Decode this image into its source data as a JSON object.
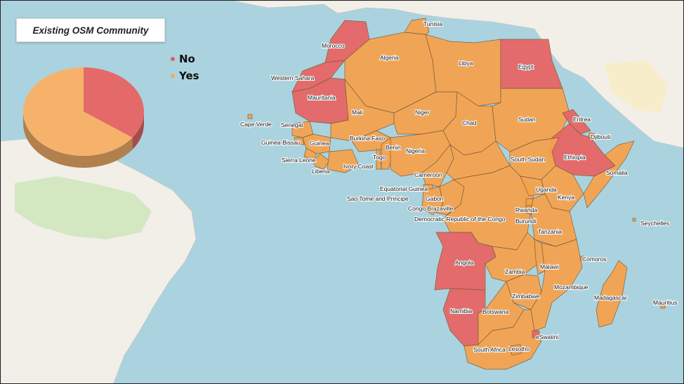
{
  "title": "Existing OSM Community",
  "legend": {
    "items": [
      {
        "label": "No",
        "color": "#e45e5e"
      },
      {
        "label": "Yes",
        "color": "#f5a85a"
      }
    ]
  },
  "colors": {
    "ocean": "#aad3df",
    "land": "#f2efe9",
    "no": "#e86464",
    "yes": "#f6a24c",
    "border": "#7a5a3a"
  },
  "chart_data": {
    "type": "pie",
    "categories": [
      "No",
      "Yes"
    ],
    "values": [
      35,
      65
    ],
    "colors": [
      "#e46a6a",
      "#f6b26b"
    ],
    "style": "3d"
  },
  "countries": [
    {
      "name": "Tunisia",
      "status": "Yes"
    },
    {
      "name": "Morocco",
      "status": "No"
    },
    {
      "name": "Algeria",
      "status": "Yes"
    },
    {
      "name": "Libya",
      "status": "Yes"
    },
    {
      "name": "Egypt",
      "status": "No"
    },
    {
      "name": "Western Sahara",
      "status": "No"
    },
    {
      "name": "Mauritania",
      "status": "No"
    },
    {
      "name": "Mali",
      "status": "Yes"
    },
    {
      "name": "Niger",
      "status": "Yes"
    },
    {
      "name": "Chad",
      "status": "Yes"
    },
    {
      "name": "Sudan",
      "status": "Yes"
    },
    {
      "name": "Eritrea",
      "status": "No"
    },
    {
      "name": "Djibouti",
      "status": "Yes"
    },
    {
      "name": "Cape Verde",
      "status": "Yes"
    },
    {
      "name": "Senegal",
      "status": "Yes"
    },
    {
      "name": "Guinea-Bissau",
      "status": "Yes"
    },
    {
      "name": "Guinea",
      "status": "Yes"
    },
    {
      "name": "Burkina Faso",
      "status": "Yes"
    },
    {
      "name": "Benin",
      "status": "Yes"
    },
    {
      "name": "Nigeria",
      "status": "Yes"
    },
    {
      "name": "Togo",
      "status": "Yes"
    },
    {
      "name": "Sierra Leone",
      "status": "Yes"
    },
    {
      "name": "Liberia",
      "status": "Yes"
    },
    {
      "name": "Ivory Coast",
      "status": "Yes"
    },
    {
      "name": "South Sudan",
      "status": "Yes"
    },
    {
      "name": "Ethiopia",
      "status": "No"
    },
    {
      "name": "Somalia",
      "status": "Yes"
    },
    {
      "name": "Cameroon",
      "status": "Yes"
    },
    {
      "name": "Equatorial Guinea",
      "status": "Yes"
    },
    {
      "name": "Sao Tome and Principe",
      "status": "Yes"
    },
    {
      "name": "Gabon",
      "status": "Yes"
    },
    {
      "name": "Congo Brazaville",
      "status": "Yes"
    },
    {
      "name": "Uganda",
      "status": "Yes"
    },
    {
      "name": "Kenya",
      "status": "Yes"
    },
    {
      "name": "Rwanda",
      "status": "Yes"
    },
    {
      "name": "Burundi",
      "status": "Yes"
    },
    {
      "name": "Democratic Republic of the Congo",
      "status": "Yes"
    },
    {
      "name": "Seychelles",
      "status": "Yes"
    },
    {
      "name": "Tanzania",
      "status": "Yes"
    },
    {
      "name": "Angola",
      "status": "No"
    },
    {
      "name": "Zambia",
      "status": "Yes"
    },
    {
      "name": "Malawi",
      "status": "Yes"
    },
    {
      "name": "Comoros",
      "status": "Yes"
    },
    {
      "name": "Mozambique",
      "status": "Yes"
    },
    {
      "name": "Zimbabwe",
      "status": "Yes"
    },
    {
      "name": "Madagascar",
      "status": "Yes"
    },
    {
      "name": "Mauritius",
      "status": "Yes"
    },
    {
      "name": "Namibia",
      "status": "No"
    },
    {
      "name": "Botswana",
      "status": "Yes"
    },
    {
      "name": "eSwatini",
      "status": "No"
    },
    {
      "name": "South Africa",
      "status": "Yes"
    },
    {
      "name": "Lesotho",
      "status": "Yes"
    }
  ]
}
